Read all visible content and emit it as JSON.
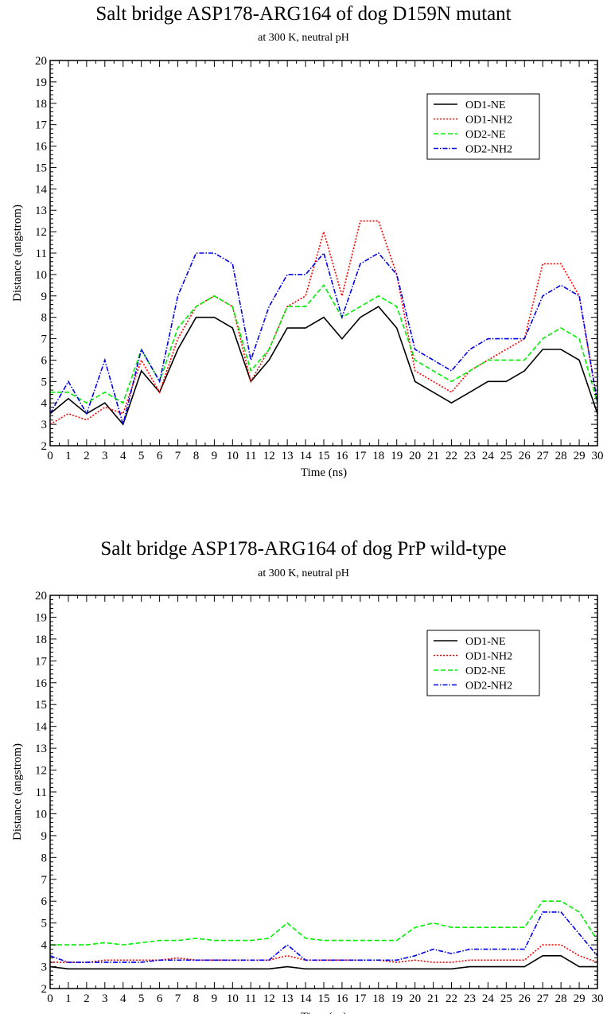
{
  "chart_data": [
    {
      "type": "line",
      "title": "Salt bridge ASP178-ARG164 of dog D159N mutant",
      "subtitle": "at 300 K, neutral pH",
      "xlabel": "Time (ns)",
      "ylabel": "Distance (angstrom)",
      "xlim": [
        0,
        30
      ],
      "ylim": [
        2,
        20
      ],
      "xticks": [
        "0",
        "1",
        "2",
        "3",
        "4",
        "5",
        "6",
        "7",
        "8",
        "9",
        "10",
        "11",
        "12",
        "13",
        "14",
        "15",
        "16",
        "17",
        "18",
        "19",
        "20",
        "21",
        "22",
        "23",
        "24",
        "25",
        "26",
        "27",
        "28",
        "29",
        "30"
      ],
      "yticks": [
        "2",
        "3",
        "4",
        "5",
        "6",
        "7",
        "8",
        "9",
        "10",
        "11",
        "12",
        "13",
        "14",
        "15",
        "16",
        "17",
        "18",
        "19",
        "20"
      ],
      "legend_position": "top-right",
      "x": [
        0,
        1,
        2,
        3,
        4,
        5,
        6,
        7,
        8,
        9,
        10,
        11,
        12,
        13,
        14,
        15,
        16,
        17,
        18,
        19,
        20,
        21,
        22,
        23,
        24,
        25,
        26,
        27,
        28,
        29,
        30
      ],
      "series": [
        {
          "name": "OD1-NE",
          "color": "#000000",
          "style": "solid",
          "values": [
            3.5,
            4.2,
            3.5,
            4.0,
            3.0,
            5.5,
            4.5,
            6.5,
            8.0,
            8.0,
            7.5,
            5.0,
            6.0,
            7.5,
            7.5,
            8.0,
            7.0,
            8.0,
            8.5,
            7.5,
            5.0,
            4.5,
            4.0,
            4.5,
            5.0,
            5.0,
            5.5,
            6.5,
            6.5,
            6.0,
            3.5
          ]
        },
        {
          "name": "OD1-NH2",
          "color": "#ff0000",
          "style": "dotted",
          "values": [
            3.0,
            3.5,
            3.2,
            3.8,
            3.5,
            6.0,
            4.5,
            7.0,
            8.5,
            9.0,
            8.5,
            5.0,
            6.5,
            8.5,
            9.0,
            12.0,
            9.0,
            12.5,
            12.5,
            10.0,
            5.5,
            5.0,
            4.5,
            5.5,
            6.0,
            6.5,
            7.0,
            10.5,
            10.5,
            9.0,
            4.0
          ]
        },
        {
          "name": "OD2-NE",
          "color": "#00ee00",
          "style": "dashed",
          "values": [
            4.5,
            4.5,
            4.0,
            4.5,
            4.0,
            6.5,
            5.0,
            7.5,
            8.5,
            9.0,
            8.5,
            5.5,
            6.5,
            8.5,
            8.5,
            9.5,
            8.0,
            8.5,
            9.0,
            8.5,
            6.0,
            5.5,
            5.0,
            5.5,
            6.0,
            6.0,
            6.0,
            7.0,
            7.5,
            7.0,
            4.0
          ]
        },
        {
          "name": "OD2-NH2",
          "color": "#0000ee",
          "style": "dash-dot",
          "values": [
            3.5,
            5.0,
            3.5,
            6.0,
            3.0,
            6.5,
            5.0,
            9.0,
            11.0,
            11.0,
            10.5,
            6.0,
            8.5,
            10.0,
            10.0,
            11.0,
            8.0,
            10.5,
            11.0,
            10.0,
            6.5,
            6.0,
            5.5,
            6.5,
            7.0,
            7.0,
            7.0,
            9.0,
            9.5,
            9.0,
            4.0
          ]
        }
      ]
    },
    {
      "type": "line",
      "title": "Salt bridge ASP178-ARG164 of dog PrP wild-type",
      "subtitle": "at 300 K, neutral pH",
      "xlabel": "Time (ns)",
      "ylabel": "Distance (angstrom)",
      "xlim": [
        0,
        30
      ],
      "ylim": [
        2,
        20
      ],
      "xticks": [
        "0",
        "1",
        "2",
        "3",
        "4",
        "5",
        "6",
        "7",
        "8",
        "9",
        "10",
        "11",
        "12",
        "13",
        "14",
        "15",
        "16",
        "17",
        "18",
        "19",
        "20",
        "21",
        "22",
        "23",
        "24",
        "25",
        "26",
        "27",
        "28",
        "29",
        "30"
      ],
      "yticks": [
        "2",
        "3",
        "4",
        "5",
        "6",
        "7",
        "8",
        "9",
        "10",
        "11",
        "12",
        "13",
        "14",
        "15",
        "16",
        "17",
        "18",
        "19",
        "20"
      ],
      "legend_position": "top-right",
      "x": [
        0,
        1,
        2,
        3,
        4,
        5,
        6,
        7,
        8,
        9,
        10,
        11,
        12,
        13,
        14,
        15,
        16,
        17,
        18,
        19,
        20,
        21,
        22,
        23,
        24,
        25,
        26,
        27,
        28,
        29,
        30
      ],
      "series": [
        {
          "name": "OD1-NE",
          "color": "#000000",
          "style": "solid",
          "values": [
            3.0,
            2.9,
            2.9,
            2.9,
            2.9,
            2.9,
            2.9,
            2.9,
            2.9,
            2.9,
            2.9,
            2.9,
            2.9,
            3.0,
            2.9,
            2.9,
            2.9,
            2.9,
            2.9,
            2.9,
            2.9,
            2.9,
            2.9,
            3.0,
            3.0,
            3.0,
            3.0,
            3.5,
            3.5,
            3.0,
            3.0
          ]
        },
        {
          "name": "OD1-NH2",
          "color": "#ff0000",
          "style": "dotted",
          "values": [
            3.2,
            3.2,
            3.2,
            3.3,
            3.3,
            3.3,
            3.3,
            3.4,
            3.3,
            3.3,
            3.3,
            3.3,
            3.3,
            3.5,
            3.3,
            3.3,
            3.3,
            3.3,
            3.3,
            3.2,
            3.3,
            3.2,
            3.2,
            3.3,
            3.3,
            3.3,
            3.3,
            4.0,
            4.0,
            3.5,
            3.2
          ]
        },
        {
          "name": "OD2-NE",
          "color": "#00ee00",
          "style": "dashed",
          "values": [
            4.0,
            4.0,
            4.0,
            4.1,
            4.0,
            4.1,
            4.2,
            4.2,
            4.3,
            4.2,
            4.2,
            4.2,
            4.3,
            5.0,
            4.3,
            4.2,
            4.2,
            4.2,
            4.2,
            4.2,
            4.8,
            5.0,
            4.8,
            4.8,
            4.8,
            4.8,
            4.8,
            6.0,
            6.0,
            5.5,
            4.2
          ]
        },
        {
          "name": "OD2-NH2",
          "color": "#0000ee",
          "style": "dash-dot",
          "values": [
            3.5,
            3.2,
            3.2,
            3.2,
            3.2,
            3.2,
            3.3,
            3.3,
            3.3,
            3.3,
            3.3,
            3.3,
            3.3,
            4.0,
            3.3,
            3.3,
            3.3,
            3.3,
            3.3,
            3.3,
            3.5,
            3.8,
            3.6,
            3.8,
            3.8,
            3.8,
            3.8,
            5.5,
            5.5,
            4.5,
            3.5
          ]
        }
      ]
    }
  ]
}
